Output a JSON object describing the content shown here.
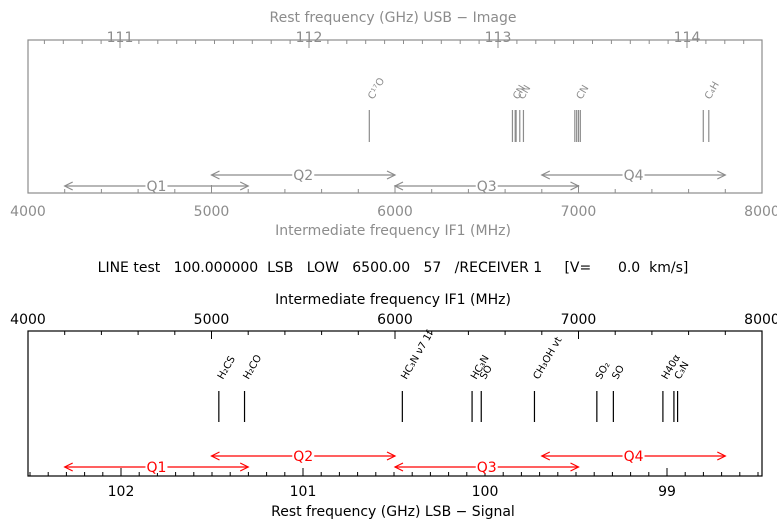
{
  "status_line": "LINE test   100.000000  LSB   LOW   6500.00   57   /RECEIVER 1     [V=      0.0  km/s]",
  "colors": {
    "image_panel": "#8c8c8c",
    "signal_panel": "#000000",
    "signal_ranges": "#ff0000",
    "image_ranges": "#8c8c8c"
  },
  "chart_data": [
    {
      "type": "spectral-lines",
      "panel": "image",
      "top_axis_title": "Rest frequency (GHz)     USB − Image",
      "top_ticks": [
        {
          "label": "111",
          "value": 111
        },
        {
          "label": "112",
          "value": 112
        },
        {
          "label": "113",
          "value": 113
        },
        {
          "label": "114",
          "value": 114
        }
      ],
      "bottom_axis_title": "Intermediate frequency IF1 (MHz)",
      "bottom_ticks": [
        {
          "label": "4000",
          "value": 4000
        },
        {
          "label": "5000",
          "value": 5000
        },
        {
          "label": "6000",
          "value": 6000
        },
        {
          "label": "7000",
          "value": 7000
        },
        {
          "label": "8000",
          "value": 8000
        }
      ],
      "xlim_if_mhz": [
        4000,
        8000
      ],
      "lines": [
        {
          "label": "C¹⁷O",
          "if_mhz": [
            5860
          ]
        },
        {
          "label": "CN",
          "if_mhz": [
            6640,
            6660
          ]
        },
        {
          "label": "CN",
          "if_mhz": [
            6655,
            6680,
            6700
          ]
        },
        {
          "label": "CN",
          "if_mhz": [
            6980,
            6990,
            7000,
            7010
          ]
        },
        {
          "label": "C₄H",
          "if_mhz": [
            7680,
            7710
          ]
        }
      ],
      "ranges": [
        {
          "label": "Q1",
          "start_mhz": 4200,
          "end_mhz": 5200
        },
        {
          "label": "Q2",
          "start_mhz": 5000,
          "end_mhz": 6000
        },
        {
          "label": "Q3",
          "start_mhz": 6000,
          "end_mhz": 7000
        },
        {
          "label": "Q4",
          "start_mhz": 6800,
          "end_mhz": 7800
        }
      ]
    },
    {
      "type": "spectral-lines",
      "panel": "signal",
      "top_axis_title": "Intermediate frequency IF1 (MHz)",
      "top_ticks": [
        {
          "label": "4000",
          "value": 4000
        },
        {
          "label": "5000",
          "value": 5000
        },
        {
          "label": "6000",
          "value": 6000
        },
        {
          "label": "7000",
          "value": 7000
        },
        {
          "label": "8000",
          "value": 8000
        }
      ],
      "bottom_axis_title": "Rest frequency (GHz)     LSB − Signal",
      "bottom_ticks": [
        {
          "label": "102",
          "value": 102
        },
        {
          "label": "101",
          "value": 101
        },
        {
          "label": "100",
          "value": 100
        },
        {
          "label": "99",
          "value": 99
        }
      ],
      "xlim_if_mhz": [
        4000,
        8000
      ],
      "lines": [
        {
          "label": "H₂CS",
          "if_mhz": [
            5040
          ]
        },
        {
          "label": "H₂CO",
          "if_mhz": [
            5180
          ]
        },
        {
          "label": "HC₃N ν7 1f",
          "if_mhz": [
            6040
          ]
        },
        {
          "label": "HC₃N",
          "if_mhz": [
            6420
          ]
        },
        {
          "label": "SO",
          "if_mhz": [
            6470
          ]
        },
        {
          "label": "CH₃OH vt",
          "if_mhz": [
            6760
          ]
        },
        {
          "label": "SO₂",
          "if_mhz": [
            7100
          ]
        },
        {
          "label": "SO",
          "if_mhz": [
            7190
          ]
        },
        {
          "label": "H40α",
          "if_mhz": [
            7460
          ]
        },
        {
          "label": "C₃N",
          "if_mhz": [
            7520,
            7540
          ]
        }
      ],
      "ranges": [
        {
          "label": "Q1",
          "start_mhz": 4200,
          "end_mhz": 5200
        },
        {
          "label": "Q2",
          "start_mhz": 5000,
          "end_mhz": 6000
        },
        {
          "label": "Q3",
          "start_mhz": 6000,
          "end_mhz": 7000
        },
        {
          "label": "Q4",
          "start_mhz": 6800,
          "end_mhz": 7800
        }
      ]
    }
  ]
}
